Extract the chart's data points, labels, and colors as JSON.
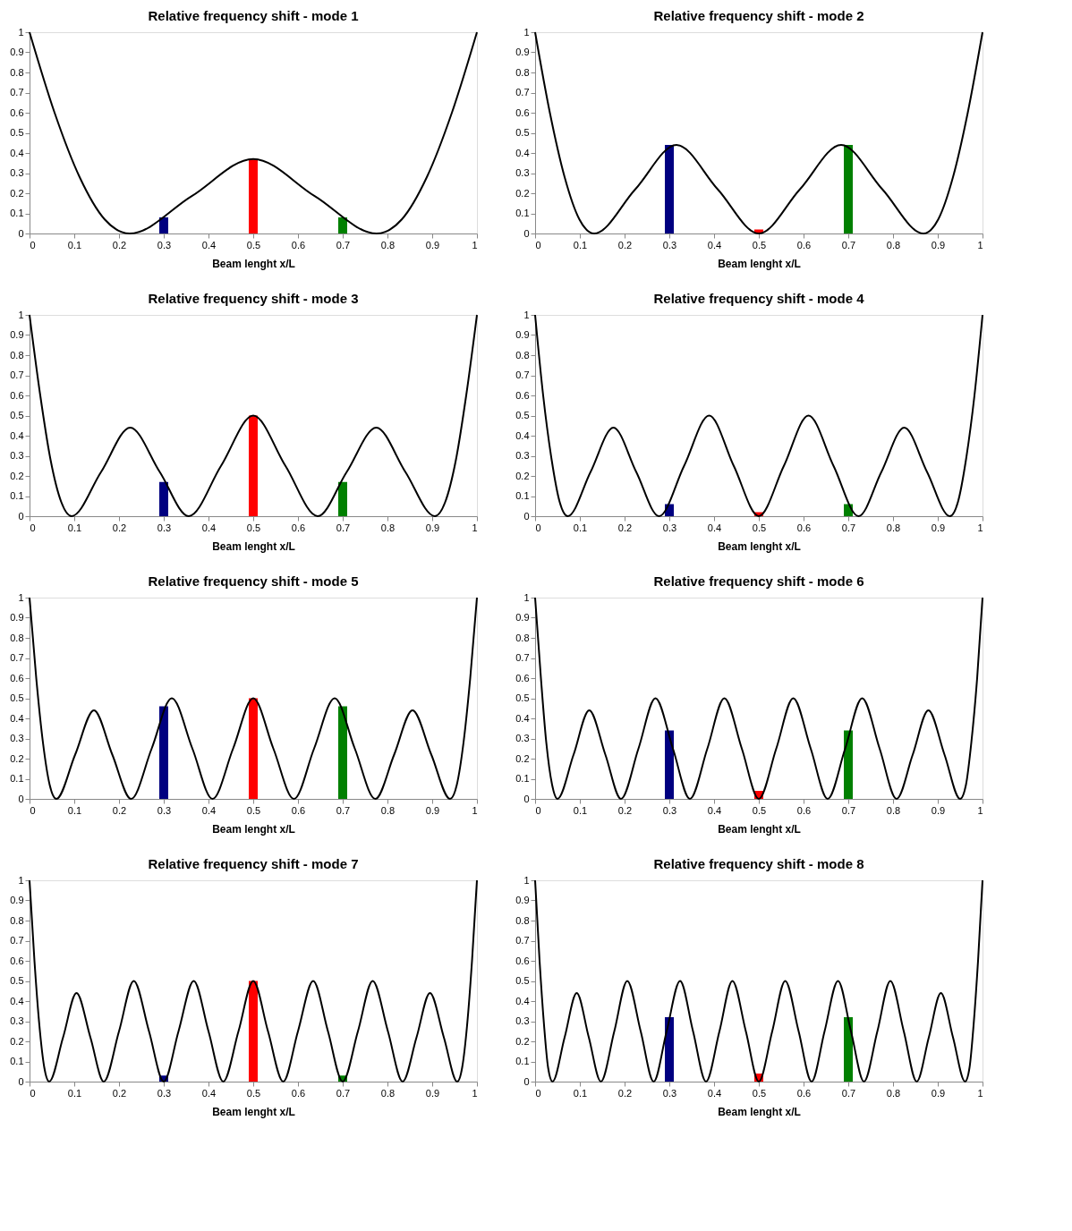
{
  "chart_data": [
    {
      "type": "line",
      "title": "Relative frequency shift - mode 1",
      "xlabel": "Beam lenght x/L",
      "xlim": [
        0,
        1
      ],
      "ylim": [
        0,
        1
      ],
      "xticks": [
        0,
        0.1,
        0.2,
        0.3,
        0.4,
        0.5,
        0.6,
        0.7,
        0.8,
        0.9,
        1
      ],
      "yticks": [
        0,
        0.1,
        0.2,
        0.3,
        0.4,
        0.5,
        0.6,
        0.7,
        0.8,
        0.9,
        1
      ],
      "legend": false,
      "series": [
        {
          "type": "line",
          "color": "#000000",
          "x": [
            0,
            0.056,
            0.112,
            0.168,
            0.224,
            0.362,
            0.5,
            0.638,
            0.776,
            0.832,
            0.888,
            0.944,
            1
          ],
          "values": [
            1,
            0.6,
            0.28,
            0.07,
            0,
            0.185,
            0.37,
            0.185,
            0,
            0.07,
            0.28,
            0.6,
            1
          ]
        },
        {
          "type": "bar",
          "x": [
            0.3,
            0.5,
            0.7
          ],
          "colors": [
            "#000080",
            "#ff0000",
            "#008000"
          ],
          "values": [
            0.08,
            0.37,
            0.08
          ]
        }
      ]
    },
    {
      "type": "line",
      "title": "Relative frequency shift - mode 2",
      "xlabel": "Beam lenght x/L",
      "xlim": [
        0,
        1
      ],
      "ylim": [
        0,
        1
      ],
      "xticks": [
        0,
        0.1,
        0.2,
        0.3,
        0.4,
        0.5,
        0.6,
        0.7,
        0.8,
        0.9,
        1
      ],
      "yticks": [
        0,
        0.1,
        0.2,
        0.3,
        0.4,
        0.5,
        0.6,
        0.7,
        0.8,
        0.9,
        1
      ],
      "legend": false,
      "series": [
        {
          "type": "line",
          "color": "#000000",
          "x": [
            0,
            0.033,
            0.066,
            0.099,
            0.132,
            0.224,
            0.316,
            0.408,
            0.5,
            0.592,
            0.684,
            0.776,
            0.868,
            0.901,
            0.934,
            0.967,
            1
          ],
          "values": [
            1,
            0.6,
            0.28,
            0.07,
            0,
            0.22,
            0.44,
            0.22,
            0,
            0.22,
            0.44,
            0.22,
            0,
            0.07,
            0.28,
            0.6,
            1
          ]
        },
        {
          "type": "bar",
          "x": [
            0.3,
            0.5,
            0.7
          ],
          "colors": [
            "#000080",
            "#ff0000",
            "#008000"
          ],
          "values": [
            0.44,
            0.02,
            0.44
          ]
        }
      ]
    },
    {
      "type": "line",
      "title": "Relative frequency shift - mode 3",
      "xlabel": "Beam lenght x/L",
      "xlim": [
        0,
        1
      ],
      "ylim": [
        0,
        1
      ],
      "xticks": [
        0,
        0.1,
        0.2,
        0.3,
        0.4,
        0.5,
        0.6,
        0.7,
        0.8,
        0.9,
        1
      ],
      "yticks": [
        0,
        0.1,
        0.2,
        0.3,
        0.4,
        0.5,
        0.6,
        0.7,
        0.8,
        0.9,
        1
      ],
      "legend": false,
      "series": [
        {
          "type": "line",
          "color": "#000000",
          "x": [
            0,
            0.024,
            0.047,
            0.071,
            0.094,
            0.16,
            0.225,
            0.291,
            0.356,
            0.428,
            0.5,
            0.572,
            0.644,
            0.709,
            0.775,
            0.84,
            0.906,
            0.929,
            0.953,
            0.976,
            1
          ],
          "values": [
            1,
            0.6,
            0.28,
            0.07,
            0,
            0.22,
            0.44,
            0.22,
            0,
            0.25,
            0.5,
            0.25,
            0,
            0.22,
            0.44,
            0.22,
            0,
            0.07,
            0.28,
            0.6,
            1
          ]
        },
        {
          "type": "bar",
          "x": [
            0.3,
            0.5,
            0.7
          ],
          "colors": [
            "#000080",
            "#ff0000",
            "#008000"
          ],
          "values": [
            0.17,
            0.5,
            0.17
          ]
        }
      ]
    },
    {
      "type": "line",
      "title": "Relative frequency shift - mode 4",
      "xlabel": "Beam lenght x/L",
      "xlim": [
        0,
        1
      ],
      "ylim": [
        0,
        1
      ],
      "xticks": [
        0,
        0.1,
        0.2,
        0.3,
        0.4,
        0.5,
        0.6,
        0.7,
        0.8,
        0.9,
        1
      ],
      "yticks": [
        0,
        0.1,
        0.2,
        0.3,
        0.4,
        0.5,
        0.6,
        0.7,
        0.8,
        0.9,
        1
      ],
      "legend": false,
      "series": [
        {
          "type": "line",
          "color": "#000000",
          "x": [
            0,
            0.018,
            0.037,
            0.055,
            0.073,
            0.124,
            0.175,
            0.226,
            0.277,
            0.333,
            0.389,
            0.444,
            0.5,
            0.556,
            0.611,
            0.667,
            0.723,
            0.774,
            0.825,
            0.876,
            0.927,
            0.945,
            0.963,
            0.982,
            1
          ],
          "values": [
            1,
            0.6,
            0.28,
            0.07,
            0,
            0.22,
            0.44,
            0.22,
            0,
            0.25,
            0.5,
            0.25,
            0,
            0.25,
            0.5,
            0.25,
            0,
            0.22,
            0.44,
            0.22,
            0,
            0.07,
            0.28,
            0.6,
            1
          ]
        },
        {
          "type": "bar",
          "x": [
            0.3,
            0.5,
            0.7
          ],
          "colors": [
            "#000080",
            "#ff0000",
            "#008000"
          ],
          "values": [
            0.06,
            0.02,
            0.06
          ]
        }
      ]
    },
    {
      "type": "line",
      "title": "Relative frequency shift - mode 5",
      "xlabel": "Beam lenght x/L",
      "xlim": [
        0,
        1
      ],
      "ylim": [
        0,
        1
      ],
      "xticks": [
        0,
        0.1,
        0.2,
        0.3,
        0.4,
        0.5,
        0.6,
        0.7,
        0.8,
        0.9,
        1
      ],
      "yticks": [
        0,
        0.1,
        0.2,
        0.3,
        0.4,
        0.5,
        0.6,
        0.7,
        0.8,
        0.9,
        1
      ],
      "legend": false,
      "series": [
        {
          "type": "line",
          "color": "#000000",
          "x": [
            0,
            0.015,
            0.03,
            0.045,
            0.06,
            0.102,
            0.144,
            0.185,
            0.227,
            0.273,
            0.318,
            0.364,
            0.409,
            0.455,
            0.5,
            0.545,
            0.591,
            0.636,
            0.682,
            0.727,
            0.773,
            0.815,
            0.856,
            0.898,
            0.94,
            0.955,
            0.97,
            0.985,
            1
          ],
          "values": [
            1,
            0.6,
            0.28,
            0.07,
            0,
            0.22,
            0.44,
            0.22,
            0,
            0.25,
            0.5,
            0.25,
            0,
            0.25,
            0.5,
            0.25,
            0,
            0.25,
            0.5,
            0.25,
            0,
            0.22,
            0.44,
            0.22,
            0,
            0.07,
            0.28,
            0.6,
            1
          ]
        },
        {
          "type": "bar",
          "x": [
            0.3,
            0.5,
            0.7
          ],
          "colors": [
            "#000080",
            "#ff0000",
            "#008000"
          ],
          "values": [
            0.46,
            0.5,
            0.46
          ]
        }
      ]
    },
    {
      "type": "line",
      "title": "Relative frequency shift - mode 6",
      "xlabel": "Beam lenght x/L",
      "xlim": [
        0,
        1
      ],
      "ylim": [
        0,
        1
      ],
      "xticks": [
        0,
        0.1,
        0.2,
        0.3,
        0.4,
        0.5,
        0.6,
        0.7,
        0.8,
        0.9,
        1
      ],
      "yticks": [
        0,
        0.1,
        0.2,
        0.3,
        0.4,
        0.5,
        0.6,
        0.7,
        0.8,
        0.9,
        1
      ],
      "legend": false,
      "series": [
        {
          "type": "line",
          "color": "#000000",
          "x": [
            0,
            0.013,
            0.025,
            0.038,
            0.05,
            0.086,
            0.121,
            0.157,
            0.192,
            0.231,
            0.269,
            0.308,
            0.346,
            0.385,
            0.423,
            0.462,
            0.5,
            0.539,
            0.577,
            0.616,
            0.654,
            0.693,
            0.731,
            0.77,
            0.808,
            0.844,
            0.879,
            0.915,
            0.95,
            0.963,
            0.975,
            0.988,
            1
          ],
          "values": [
            1,
            0.6,
            0.28,
            0.07,
            0,
            0.22,
            0.44,
            0.22,
            0,
            0.25,
            0.5,
            0.25,
            0,
            0.25,
            0.5,
            0.25,
            0,
            0.25,
            0.5,
            0.25,
            0,
            0.25,
            0.5,
            0.25,
            0,
            0.22,
            0.44,
            0.22,
            0,
            0.07,
            0.28,
            0.6,
            1
          ]
        },
        {
          "type": "bar",
          "x": [
            0.3,
            0.5,
            0.7
          ],
          "colors": [
            "#000080",
            "#ff0000",
            "#008000"
          ],
          "values": [
            0.34,
            0.04,
            0.34
          ]
        }
      ]
    },
    {
      "type": "line",
      "title": "Relative frequency shift - mode 7",
      "xlabel": "Beam lenght x/L",
      "xlim": [
        0,
        1
      ],
      "ylim": [
        0,
        1
      ],
      "xticks": [
        0,
        0.1,
        0.2,
        0.3,
        0.4,
        0.5,
        0.6,
        0.7,
        0.8,
        0.9,
        1
      ],
      "yticks": [
        0,
        0.1,
        0.2,
        0.3,
        0.4,
        0.5,
        0.6,
        0.7,
        0.8,
        0.9,
        1
      ],
      "legend": false,
      "series": [
        {
          "type": "line",
          "color": "#000000",
          "x": [
            0,
            0.011,
            0.022,
            0.033,
            0.044,
            0.075,
            0.105,
            0.136,
            0.166,
            0.2,
            0.233,
            0.267,
            0.3,
            0.333,
            0.367,
            0.4,
            0.433,
            0.467,
            0.5,
            0.533,
            0.567,
            0.6,
            0.634,
            0.667,
            0.7,
            0.734,
            0.767,
            0.801,
            0.834,
            0.865,
            0.895,
            0.926,
            0.956,
            0.967,
            0.978,
            0.989,
            1
          ],
          "values": [
            1,
            0.6,
            0.28,
            0.07,
            0,
            0.22,
            0.44,
            0.22,
            0,
            0.25,
            0.5,
            0.25,
            0,
            0.25,
            0.5,
            0.25,
            0,
            0.25,
            0.5,
            0.25,
            0,
            0.25,
            0.5,
            0.25,
            0,
            0.25,
            0.5,
            0.25,
            0,
            0.22,
            0.44,
            0.22,
            0,
            0.07,
            0.28,
            0.6,
            1
          ]
        },
        {
          "type": "bar",
          "x": [
            0.3,
            0.5,
            0.7
          ],
          "colors": [
            "#000080",
            "#ff0000",
            "#008000"
          ],
          "values": [
            0.03,
            0.5,
            0.03
          ]
        }
      ]
    },
    {
      "type": "line",
      "title": "Relative frequency shift - mode 8",
      "xlabel": "Beam lenght x/L",
      "xlim": [
        0,
        1
      ],
      "ylim": [
        0,
        1
      ],
      "xticks": [
        0,
        0.1,
        0.2,
        0.3,
        0.4,
        0.5,
        0.6,
        0.7,
        0.8,
        0.9,
        1
      ],
      "yticks": [
        0,
        0.1,
        0.2,
        0.3,
        0.4,
        0.5,
        0.6,
        0.7,
        0.8,
        0.9,
        1
      ],
      "legend": false,
      "series": [
        {
          "type": "line",
          "color": "#000000",
          "x": [
            0,
            0.01,
            0.02,
            0.029,
            0.039,
            0.066,
            0.093,
            0.12,
            0.147,
            0.177,
            0.206,
            0.236,
            0.265,
            0.294,
            0.324,
            0.353,
            0.382,
            0.412,
            0.441,
            0.471,
            0.5,
            0.53,
            0.559,
            0.589,
            0.618,
            0.647,
            0.677,
            0.706,
            0.735,
            0.765,
            0.794,
            0.824,
            0.853,
            0.88,
            0.907,
            0.934,
            0.961,
            0.971,
            0.98,
            0.99,
            1
          ],
          "values": [
            1,
            0.6,
            0.28,
            0.07,
            0,
            0.22,
            0.44,
            0.22,
            0,
            0.25,
            0.5,
            0.25,
            0,
            0.25,
            0.5,
            0.25,
            0,
            0.25,
            0.5,
            0.25,
            0,
            0.25,
            0.5,
            0.25,
            0,
            0.25,
            0.5,
            0.25,
            0,
            0.25,
            0.5,
            0.25,
            0,
            0.22,
            0.44,
            0.22,
            0,
            0.07,
            0.28,
            0.6,
            1
          ]
        },
        {
          "type": "bar",
          "x": [
            0.3,
            0.5,
            0.7
          ],
          "colors": [
            "#000080",
            "#ff0000",
            "#008000"
          ],
          "values": [
            0.32,
            0.04,
            0.32
          ]
        }
      ]
    }
  ]
}
